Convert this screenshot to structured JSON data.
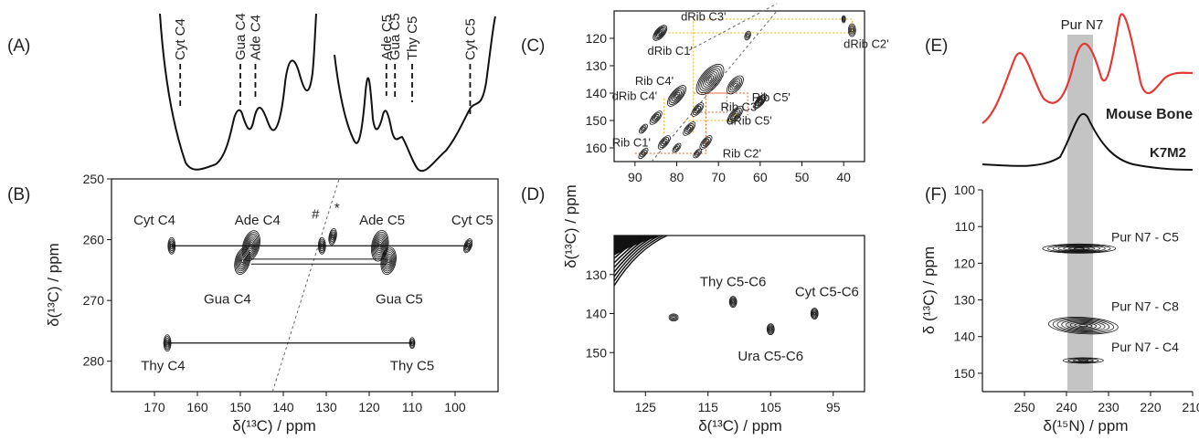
{
  "chart_data": [
    {
      "id": "A",
      "panel_label": "(A)",
      "type": "line",
      "description_scope": "1D 13C projection above panel B, shares x axis with B",
      "annotations": [
        "Cyt C4",
        "Gua C4",
        "Ade C4",
        "Ade C5",
        "Gua C5",
        "Thy C5",
        "Cyt C5"
      ],
      "annotation_x_ppm": [
        164,
        150,
        146.5,
        116,
        114,
        110,
        96.5
      ]
    },
    {
      "id": "B",
      "panel_label": "(B)",
      "type": "scatter",
      "xlabel": "δ(¹³C) / ppm",
      "ylabel": "δ(¹³C) / ppm",
      "xlim": [
        180,
        90
      ],
      "ylim": [
        250,
        285
      ],
      "xticks": [
        "170",
        "160",
        "150",
        "140",
        "130",
        "120",
        "110",
        "100"
      ],
      "yticks": [
        "250",
        "260",
        "270",
        "280"
      ],
      "peaks": [
        {
          "label": "Cyt C4",
          "x": 166,
          "y": 261
        },
        {
          "label": "Ade C4",
          "x": 147.5,
          "y": 261
        },
        {
          "label": "Gua C4",
          "x": 149.5,
          "y": 263.5
        },
        {
          "label": "Ade C5",
          "x": 117.5,
          "y": 261
        },
        {
          "label": "Gua C5",
          "x": 115.5,
          "y": 263.5
        },
        {
          "label": "Cyt C5",
          "x": 97,
          "y": 261
        },
        {
          "label": "Thy C4",
          "x": 167,
          "y": 277
        },
        {
          "label": "Thy C5",
          "x": 110,
          "y": 277
        },
        {
          "label": "#",
          "x": 131,
          "y": 261
        },
        {
          "label": "*",
          "x": 128.5,
          "y": 259.5
        }
      ]
    },
    {
      "id": "C",
      "panel_label": "(C)",
      "type": "scatter",
      "ylabel": "δ(¹³C) / ppm",
      "xlim": [
        95,
        35
      ],
      "ylim": [
        110,
        165
      ],
      "xticks": [
        "90",
        "80",
        "70",
        "60",
        "50",
        "40"
      ],
      "yticks": [
        "120",
        "130",
        "140",
        "150",
        "160"
      ],
      "labels_deoxyribose": [
        "dRib C3'",
        "dRib C1'",
        "dRib C2'",
        "dRib C4'",
        "dRib C5'"
      ],
      "labels_ribose": [
        "Rib C4'",
        "Rib C5'",
        "Rib C3'",
        "Rib C1'",
        "Rib C2'"
      ],
      "colors": {
        "deoxyribose": "#e8b50a",
        "ribose": "#e8612c"
      }
    },
    {
      "id": "D",
      "panel_label": "(D)",
      "type": "scatter",
      "xlabel": "δ(¹³C) / ppm",
      "xlim": [
        130,
        90
      ],
      "ylim": [
        120,
        160
      ],
      "xticks": [
        "125",
        "115",
        "105",
        "95"
      ],
      "yticks": [
        "130",
        "140",
        "150"
      ],
      "peaks": [
        {
          "label": "Thy C5-C6",
          "x": 111,
          "y": 137
        },
        {
          "label": "Cyt C5-C6",
          "x": 98,
          "y": 140
        },
        {
          "label": "Ura C5-C6",
          "x": 105,
          "y": 144
        }
      ]
    },
    {
      "id": "E",
      "panel_label": "(E)",
      "type": "line",
      "series": [
        {
          "name": "Mouse Bone",
          "color": "#e53935"
        },
        {
          "name": "K7M2",
          "color": "#111111"
        }
      ],
      "highlight_label": "Pur N7"
    },
    {
      "id": "F",
      "panel_label": "(F)",
      "type": "scatter",
      "xlabel": "δ(¹⁵N) / ppm",
      "ylabel": "δ (¹³C) / ppm",
      "xlim": [
        260,
        210
      ],
      "ylim": [
        100,
        155
      ],
      "xticks": [
        "250",
        "240",
        "230",
        "220",
        "210"
      ],
      "yticks": [
        "100",
        "110",
        "120",
        "130",
        "140",
        "150"
      ],
      "peaks": [
        {
          "label": "Pur N7 - C5",
          "x": 238,
          "y": 116
        },
        {
          "label": "Pur N7 - C8",
          "x": 237,
          "y": 137
        },
        {
          "label": "Pur N7 - C4",
          "x": 236,
          "y": 147
        }
      ]
    }
  ]
}
